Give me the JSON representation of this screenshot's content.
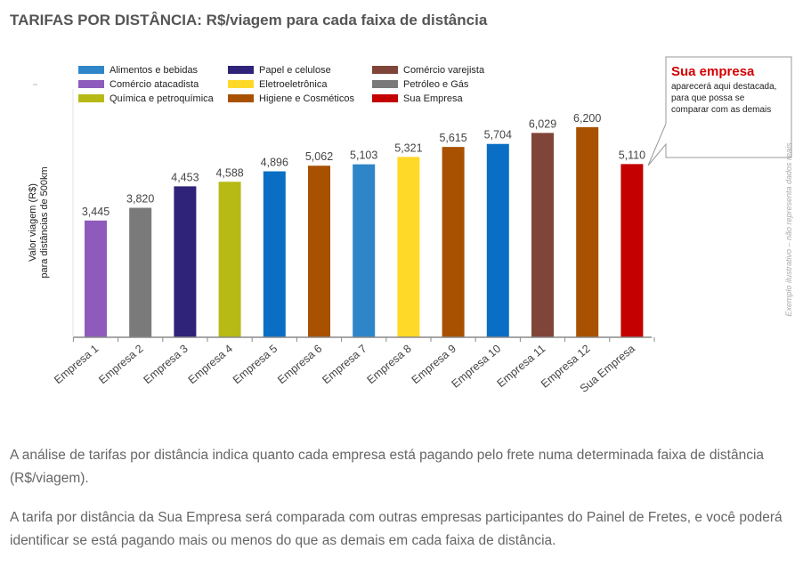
{
  "title": "TARIFAS POR DISTÂNCIA: R$/viagem para cada faixa de distância",
  "paragraphs": [
    "A análise de tarifas por distância indica quanto cada empresa está pagando pelo frete numa determinada faixa de distância (R$/viagem).",
    "A tarifa por distância da Sua Empresa será comparada com outras empresas participantes do Painel de Fretes, e você poderá identificar se está pagando mais ou menos do que as demais em cada faixa de distância."
  ],
  "chart_data": {
    "type": "bar",
    "ylabel_lines": [
      "Valor viagem (R$)",
      "para distâncias de 500km"
    ],
    "ylim": [
      0,
      6800
    ],
    "grid": false,
    "legend_position": "top-left",
    "legend": [
      {
        "name": "Alimentos e bebidas",
        "color": "#2e86c8"
      },
      {
        "name": "Papel e celulose",
        "color": "#2e2378"
      },
      {
        "name": "Comércio varejista",
        "color": "#7f4538"
      },
      {
        "name": "Comércio atacadista",
        "color": "#8e5bbd"
      },
      {
        "name": "Eletroeletrônica",
        "color": "#ffd928"
      },
      {
        "name": "Petróleo e Gás",
        "color": "#7a7a7a"
      },
      {
        "name": "Química e petroquímica",
        "color": "#b7ba14"
      },
      {
        "name": "Higiene e Cosméticos",
        "color": "#a85100"
      },
      {
        "name": "Sua Empresa",
        "color": "#c40000"
      }
    ],
    "bars": [
      {
        "category": "Empresa 1",
        "value": 3445,
        "label": "3,445",
        "color": "#8e5bbd"
      },
      {
        "category": "Empresa 2",
        "value": 3820,
        "label": "3,820",
        "color": "#7a7a7a"
      },
      {
        "category": "Empresa 3",
        "value": 4453,
        "label": "4,453",
        "color": "#2e2378"
      },
      {
        "category": "Empresa 4",
        "value": 4588,
        "label": "4,588",
        "color": "#b7ba14"
      },
      {
        "category": "Empresa 5",
        "value": 4896,
        "label": "4,896",
        "color": "#0a6fc4"
      },
      {
        "category": "Empresa 6",
        "value": 5062,
        "label": "5,062",
        "color": "#a85100"
      },
      {
        "category": "Empresa 7",
        "value": 5103,
        "label": "5,103",
        "color": "#2e86c8"
      },
      {
        "category": "Empresa 8",
        "value": 5321,
        "label": "5,321",
        "color": "#ffd928"
      },
      {
        "category": "Empresa 9",
        "value": 5615,
        "label": "5,615",
        "color": "#a85100"
      },
      {
        "category": "Empresa 10",
        "value": 5704,
        "label": "5,704",
        "color": "#0a6fc4"
      },
      {
        "category": "Empresa 11",
        "value": 6029,
        "label": "6,029",
        "color": "#7f4538"
      },
      {
        "category": "Empresa 12",
        "value": 6200,
        "label": "6,200",
        "color": "#a85100"
      },
      {
        "category": "Sua Empresa",
        "value": 5110,
        "label": "5,110",
        "color": "#c40000"
      }
    ],
    "callout": {
      "title": "Sua empresa",
      "lines": [
        "aparecerá aqui destacada,",
        "para que possa se",
        "comparar com as demais"
      ]
    },
    "side_note": "Exemplo ilustrativo – não representa dados reais"
  }
}
